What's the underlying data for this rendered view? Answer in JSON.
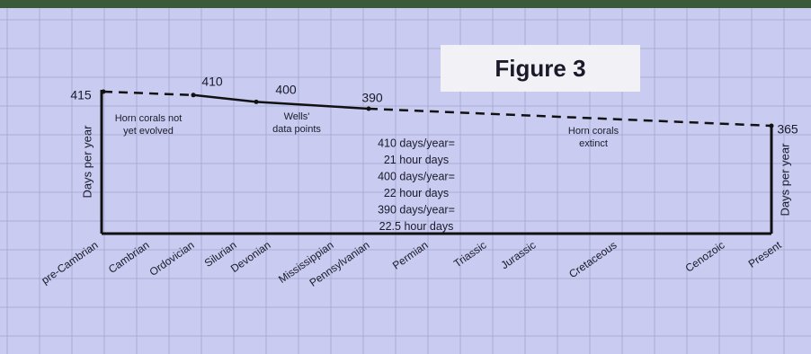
{
  "chart_data": {
    "type": "line",
    "title": "Figure 3",
    "y_axis_label": "Days per year",
    "y2_axis_label": "Days per year",
    "categories": [
      "pre-Cambrian",
      "Cambrian",
      "Ordovician",
      "Silurian",
      "Devonian",
      "Mississippian",
      "Pennsylvanian",
      "Permian",
      "Triassic",
      "Jurassic",
      "Cretaceous",
      "Cenozoic",
      "Present"
    ],
    "values": [
      415,
      null,
      null,
      410,
      400,
      null,
      null,
      390,
      null,
      null,
      null,
      null,
      365
    ],
    "color": "#111111",
    "annotations": [
      [
        "Horn corals not",
        "yet evolved"
      ],
      [
        "Wells'",
        "data points"
      ],
      [
        "410 days/year=",
        "21 hour days",
        "400 days/year=",
        "22 hour days",
        "390 days/year=",
        "22.5 hour days"
      ],
      [
        "Horn corals",
        "extinct"
      ]
    ]
  }
}
